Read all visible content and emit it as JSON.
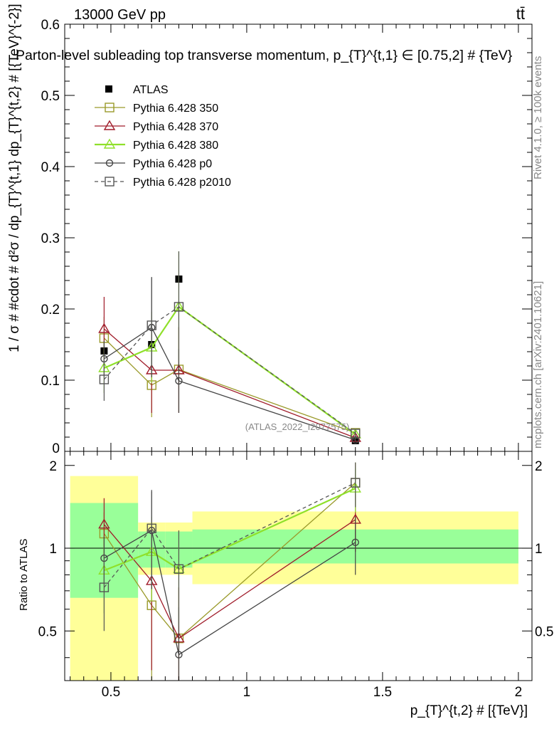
{
  "header": {
    "left": "13000 GeV pp",
    "right": "tt̄",
    "title": "Parton-level subleading top transverse momentum, p_{T}^{t,1} ∈ [0.75,2] # {TeV}"
  },
  "side_text": {
    "rivet": "Rivet 4.1.0, ≥ 100k events",
    "mcplots": "mcplots.cern.ch [arXiv:2401.10621]"
  },
  "watermark": "(ATLAS_2022_I2077575)",
  "chart_data": [
    {
      "type": "line",
      "panel": "main",
      "ylabel": "1 / σ # #cdot # d²σ / dp_{T}^{t,1} dp_{T}^{t,2} # [{TeV}^{-2}]",
      "xlim": [
        0.33,
        2.05
      ],
      "ylim": [
        0,
        0.6
      ],
      "y_ticks": [
        "0",
        "0.1",
        "0.2",
        "0.3",
        "0.4",
        "0.5",
        "0.6"
      ],
      "legend_position": "top-left",
      "x": [
        0.475,
        0.65,
        0.75,
        1.4
      ],
      "series": [
        {
          "name": "ATLAS",
          "marker": "filled-square",
          "color": "#000000",
          "values": [
            0.141,
            0.15,
            0.242,
            0.015
          ]
        },
        {
          "name": "Pythia 6.428 350",
          "marker": "open-square",
          "color": "#9a9a2a",
          "values": [
            0.159,
            0.093,
            0.115,
            0.026
          ],
          "err": [
            0.03,
            0.045,
            0.06,
            0.004
          ]
        },
        {
          "name": "Pythia 6.428 370",
          "marker": "open-triangle",
          "color": "#a01c2a",
          "values": [
            0.172,
            0.114,
            0.114,
            0.019
          ],
          "err": [
            0.045,
            0.06,
            0.06,
            0.004
          ]
        },
        {
          "name": "Pythia 6.428 380",
          "marker": "open-triangle",
          "color": "#8fe02a",
          "values": [
            0.117,
            0.146,
            0.203,
            0.024
          ],
          "err": [
            0.035,
            0.05,
            0.078,
            0.004
          ]
        },
        {
          "name": "Pythia 6.428 p0",
          "marker": "open-circle",
          "color": "#444444",
          "values": [
            0.13,
            0.174,
            0.099,
            0.016
          ],
          "err": [
            0.025,
            0.07,
            0.045,
            0.003
          ]
        },
        {
          "name": "Pythia 6.428 p2010",
          "marker": "open-square-dashed",
          "color": "#555555",
          "values": [
            0.101,
            0.177,
            0.203,
            0.025
          ],
          "err": [
            0.03,
            0.068,
            0.078,
            0.004
          ]
        }
      ]
    },
    {
      "type": "line",
      "panel": "ratio",
      "ylabel": "Ratio to ATLAS",
      "xlabel": "p_{T}^{t,2} # [{TeV}]",
      "xlim": [
        0.33,
        2.05
      ],
      "ylim": [
        0.33,
        2.25
      ],
      "x_ticks": [
        "0.5",
        "1",
        "1.5",
        "2"
      ],
      "y_ticks": [
        "0.5",
        "1",
        "2"
      ],
      "bands": [
        {
          "x0": 0.35,
          "x1": 0.6,
          "inner": [
            0.66,
            1.46
          ],
          "outer": [
            0.33,
            1.83
          ]
        },
        {
          "x0": 0.6,
          "x1": 0.7,
          "inner": [
            0.85,
            1.15
          ],
          "outer": [
            0.8,
            1.24
          ]
        },
        {
          "x0": 0.7,
          "x1": 0.8,
          "inner": [
            0.85,
            1.15
          ],
          "outer": [
            0.8,
            1.24
          ]
        },
        {
          "x0": 0.8,
          "x1": 2.0,
          "inner": [
            0.88,
            1.17
          ],
          "outer": [
            0.74,
            1.36
          ]
        }
      ],
      "x": [
        0.475,
        0.65,
        0.75,
        1.4
      ],
      "series": [
        {
          "name": "Pythia 6.428 350",
          "values": [
            1.13,
            0.62,
            0.47,
            1.73
          ],
          "err": [
            0.22,
            0.3,
            0.25,
            0.32
          ]
        },
        {
          "name": "Pythia 6.428 370",
          "values": [
            1.22,
            0.76,
            0.47,
            1.27
          ],
          "err": [
            0.3,
            0.4,
            0.25,
            0.3
          ]
        },
        {
          "name": "Pythia 6.428 380",
          "values": [
            0.83,
            0.97,
            0.84,
            1.65
          ],
          "err": [
            0.25,
            0.33,
            0.32,
            0.3
          ]
        },
        {
          "name": "Pythia 6.428 p0",
          "values": [
            0.92,
            1.16,
            0.41,
            1.05
          ],
          "err": [
            0.18,
            0.45,
            0.2,
            0.25
          ]
        },
        {
          "name": "Pythia 6.428 p2010",
          "values": [
            0.72,
            1.18,
            0.84,
            1.73
          ],
          "err": [
            0.22,
            0.45,
            0.32,
            0.32
          ]
        }
      ]
    }
  ]
}
